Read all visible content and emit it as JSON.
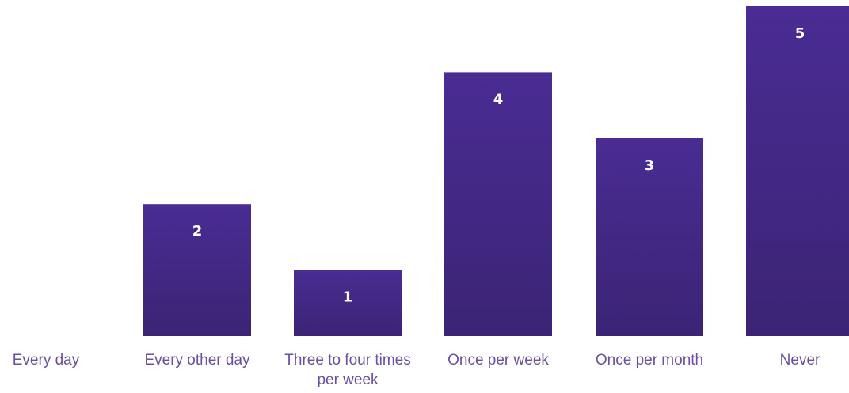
{
  "chart_data": {
    "type": "bar",
    "categories": [
      "Every day",
      "Every other day",
      "Three to four times per week",
      "Once per week",
      "Once per month",
      "Never"
    ],
    "values": [
      0,
      2,
      1,
      4,
      3,
      5
    ],
    "data_labels": [
      "",
      "2",
      "1",
      "4",
      "3",
      "5"
    ],
    "category_lines": [
      [
        "Every day"
      ],
      [
        "Every other day"
      ],
      [
        "Three to four times",
        "per week"
      ],
      [
        "Once per week"
      ],
      [
        "Once per month"
      ],
      [
        "Never"
      ]
    ],
    "ylim": [
      0,
      5
    ],
    "grid": false,
    "legend": "none",
    "colors": {
      "bar_top": "#4a2c93",
      "bar_bottom": "#3b2475",
      "data_label": "#ffffff",
      "category_label": "#6b4fa0"
    }
  }
}
